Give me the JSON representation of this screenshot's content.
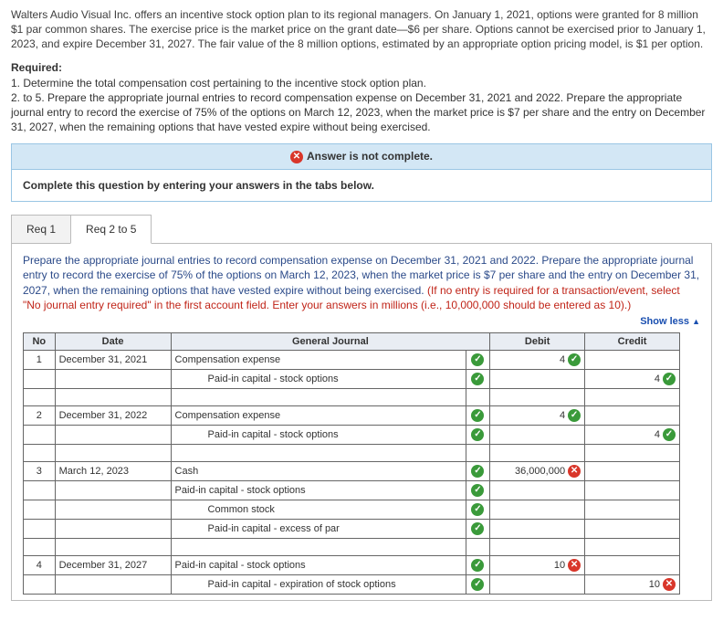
{
  "problem": {
    "p1": "Walters Audio Visual Inc. offers an incentive stock option plan to its regional managers. On January 1, 2021, options were granted for 8 million $1 par common shares. The exercise price is the market price on the grant date—$6 per share. Options cannot be exercised prior to January 1, 2023, and expire December 31, 2027. The fair value of the 8 million options, estimated by an appropriate option pricing model, is $1 per option.",
    "required_label": "Required:",
    "r1": "1. Determine the total compensation cost pertaining to the incentive stock option plan.",
    "r2": "2. to 5. Prepare the appropriate journal entries to record compensation expense on December 31, 2021 and 2022. Prepare the appropriate journal entry to record the exercise of 75% of the options on March 12, 2023, when the market price is $7 per share and the entry on December 31, 2027, when the remaining options that have vested expire without being exercised."
  },
  "banner": {
    "text": "Answer is not complete."
  },
  "complete_note": "Complete this question by entering your answers in the tabs below.",
  "tabs": {
    "t1": "Req 1",
    "t2": "Req 2 to 5"
  },
  "panel": {
    "instr_main": "Prepare the appropriate journal entries to record compensation expense on December 31, 2021 and 2022. Prepare the appropriate journal entry to record the exercise of 75% of the options on March 12, 2023, when the market price is $7 per share and the entry on December 31, 2027, when the remaining options that have vested expire without being exercised. ",
    "instr_warn": "(If no entry is required for a transaction/event, select \"No journal entry required\" in the first account field. Enter your answers in millions (i.e., 10,000,000 should be entered as 10).)",
    "showless": "Show less"
  },
  "table": {
    "headers": {
      "no": "No",
      "date": "Date",
      "gj": "General Journal",
      "debit": "Debit",
      "credit": "Credit"
    },
    "r1": {
      "no": "1",
      "date": "December 31, 2021",
      "acc": "Compensation expense",
      "debit": "4"
    },
    "r1b": {
      "acc": "Paid-in capital - stock options",
      "credit": "4"
    },
    "r2": {
      "no": "2",
      "date": "December 31, 2022",
      "acc": "Compensation expense",
      "debit": "4"
    },
    "r2b": {
      "acc": "Paid-in capital - stock options",
      "credit": "4"
    },
    "r3": {
      "no": "3",
      "date": "March 12, 2023",
      "acc": "Cash",
      "debit": "36,000,000"
    },
    "r3b": {
      "acc": "Paid-in capital - stock options"
    },
    "r3c": {
      "acc": "Common stock"
    },
    "r3d": {
      "acc": "Paid-in capital - excess of par"
    },
    "r4": {
      "no": "4",
      "date": "December 31, 2027",
      "acc": "Paid-in capital - stock options",
      "debit": "10"
    },
    "r4b": {
      "acc": "Paid-in capital - expiration of stock options",
      "credit": "10"
    }
  }
}
